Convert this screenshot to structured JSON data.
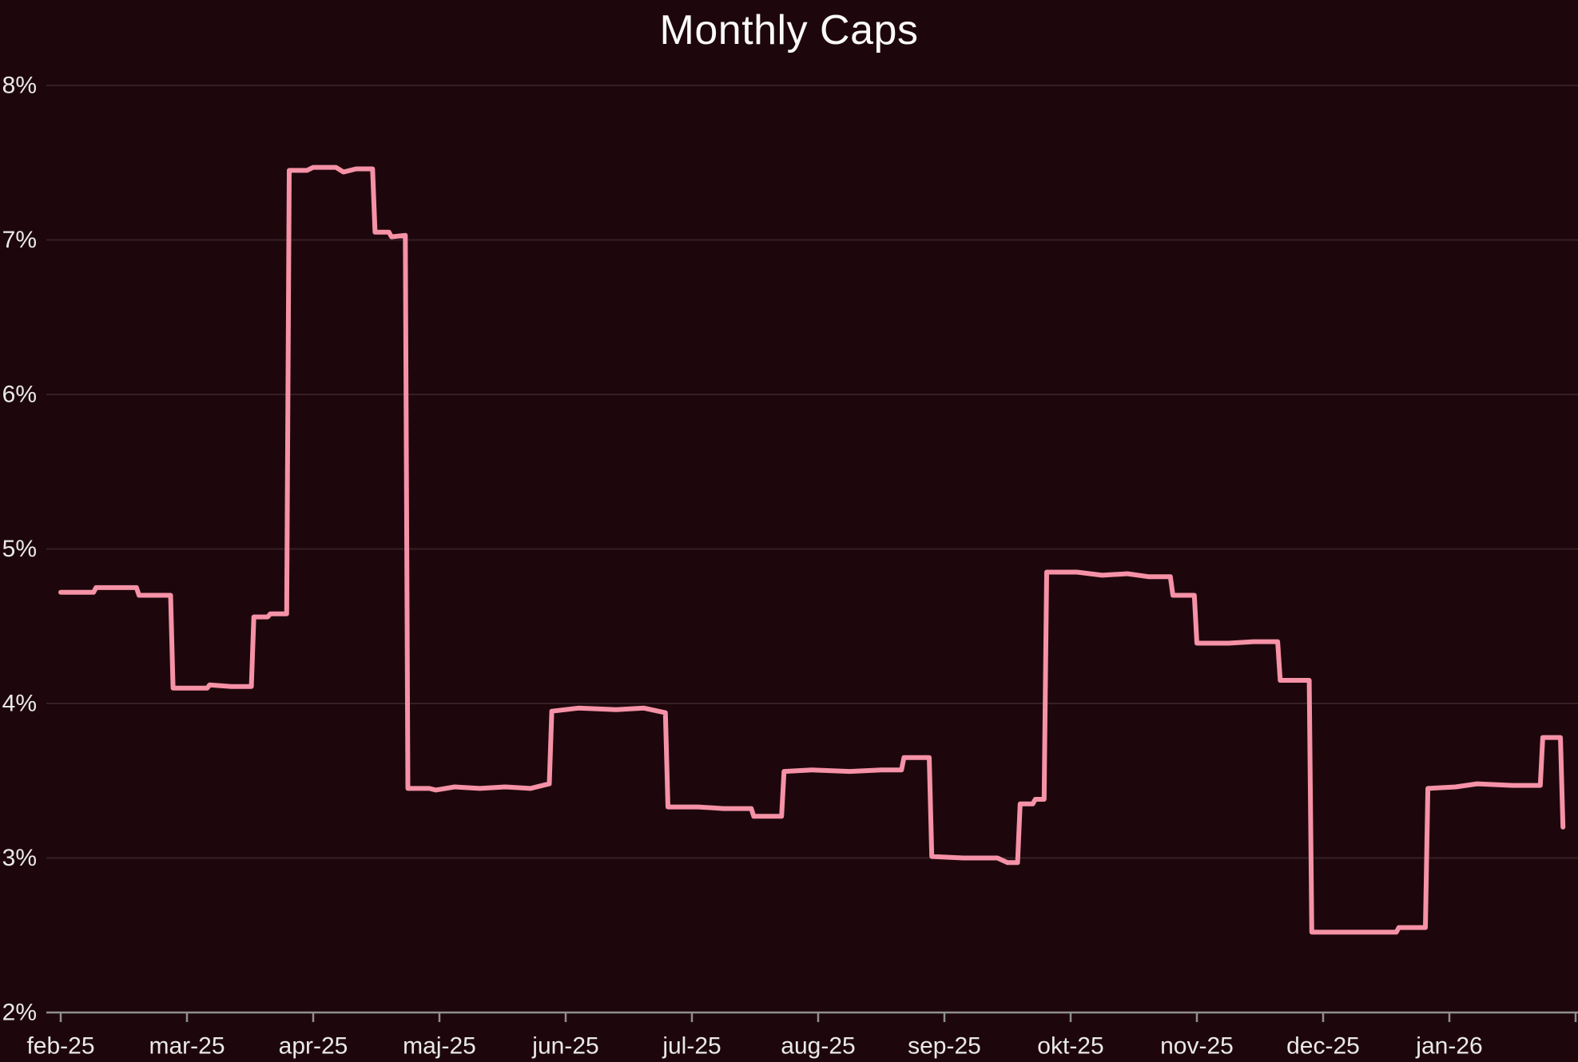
{
  "chart_data": {
    "type": "line",
    "line_style": "step",
    "title": "Monthly Caps",
    "xlabel": "",
    "ylabel": "",
    "legend": "none",
    "grid": "horizontal",
    "ylim": [
      2,
      8
    ],
    "y_ticks": [
      2,
      3,
      4,
      5,
      6,
      7,
      8
    ],
    "y_tick_suffix": "%",
    "x_tick_labels": [
      "feb-25",
      "mar-25",
      "apr-25",
      "maj-25",
      "jun-25",
      "jul-25",
      "aug-25",
      "sep-25",
      "okt-25",
      "nov-25",
      "dec-25",
      "jan-26"
    ],
    "colors": {
      "line": "#f592a7",
      "background": "#1e070c",
      "grid": "rgba(255,255,255,0.10)",
      "axis": "#8f8f8f",
      "text": "#e9e9e9",
      "title": "#fafafa"
    },
    "series": [
      {
        "name": "Monthly Caps",
        "points": [
          [
            0.0,
            4.72
          ],
          [
            0.26,
            4.72
          ],
          [
            0.28,
            4.75
          ],
          [
            0.6,
            4.75
          ],
          [
            0.62,
            4.7
          ],
          [
            0.87,
            4.7
          ],
          [
            0.89,
            4.1
          ],
          [
            1.16,
            4.1
          ],
          [
            1.18,
            4.12
          ],
          [
            1.35,
            4.11
          ],
          [
            1.51,
            4.11
          ],
          [
            1.53,
            4.56
          ],
          [
            1.64,
            4.56
          ],
          [
            1.66,
            4.58
          ],
          [
            1.79,
            4.58
          ],
          [
            1.81,
            7.45
          ],
          [
            1.95,
            7.45
          ],
          [
            2.0,
            7.47
          ],
          [
            2.18,
            7.47
          ],
          [
            2.24,
            7.44
          ],
          [
            2.34,
            7.46
          ],
          [
            2.47,
            7.46
          ],
          [
            2.49,
            7.05
          ],
          [
            2.6,
            7.05
          ],
          [
            2.62,
            7.02
          ],
          [
            2.73,
            7.03
          ],
          [
            2.75,
            3.45
          ],
          [
            2.92,
            3.45
          ],
          [
            2.97,
            3.44
          ],
          [
            3.12,
            3.46
          ],
          [
            3.32,
            3.45
          ],
          [
            3.52,
            3.46
          ],
          [
            3.72,
            3.45
          ],
          [
            3.87,
            3.48
          ],
          [
            3.89,
            3.95
          ],
          [
            4.1,
            3.97
          ],
          [
            4.4,
            3.96
          ],
          [
            4.62,
            3.97
          ],
          [
            4.79,
            3.94
          ],
          [
            4.81,
            3.33
          ],
          [
            5.05,
            3.33
          ],
          [
            5.25,
            3.32
          ],
          [
            5.47,
            3.32
          ],
          [
            5.49,
            3.27
          ],
          [
            5.71,
            3.27
          ],
          [
            5.73,
            3.56
          ],
          [
            5.95,
            3.57
          ],
          [
            6.25,
            3.56
          ],
          [
            6.5,
            3.57
          ],
          [
            6.66,
            3.57
          ],
          [
            6.68,
            3.65
          ],
          [
            6.88,
            3.65
          ],
          [
            6.9,
            3.01
          ],
          [
            7.15,
            3.0
          ],
          [
            7.42,
            3.0
          ],
          [
            7.5,
            2.97
          ],
          [
            7.58,
            2.97
          ],
          [
            7.6,
            3.35
          ],
          [
            7.7,
            3.35
          ],
          [
            7.72,
            3.38
          ],
          [
            7.79,
            3.38
          ],
          [
            7.81,
            4.85
          ],
          [
            8.05,
            4.85
          ],
          [
            8.25,
            4.83
          ],
          [
            8.45,
            4.84
          ],
          [
            8.62,
            4.82
          ],
          [
            8.79,
            4.82
          ],
          [
            8.81,
            4.7
          ],
          [
            8.98,
            4.7
          ],
          [
            9.0,
            4.39
          ],
          [
            9.25,
            4.39
          ],
          [
            9.45,
            4.4
          ],
          [
            9.64,
            4.4
          ],
          [
            9.66,
            4.15
          ],
          [
            9.89,
            4.15
          ],
          [
            9.91,
            2.52
          ],
          [
            10.2,
            2.52
          ],
          [
            10.45,
            2.52
          ],
          [
            10.58,
            2.52
          ],
          [
            10.6,
            2.55
          ],
          [
            10.81,
            2.55
          ],
          [
            10.83,
            3.45
          ],
          [
            11.05,
            3.46
          ],
          [
            11.22,
            3.48
          ],
          [
            11.5,
            3.47
          ],
          [
            11.72,
            3.47
          ],
          [
            11.74,
            3.78
          ],
          [
            11.88,
            3.78
          ],
          [
            11.9,
            3.2
          ]
        ]
      }
    ]
  }
}
